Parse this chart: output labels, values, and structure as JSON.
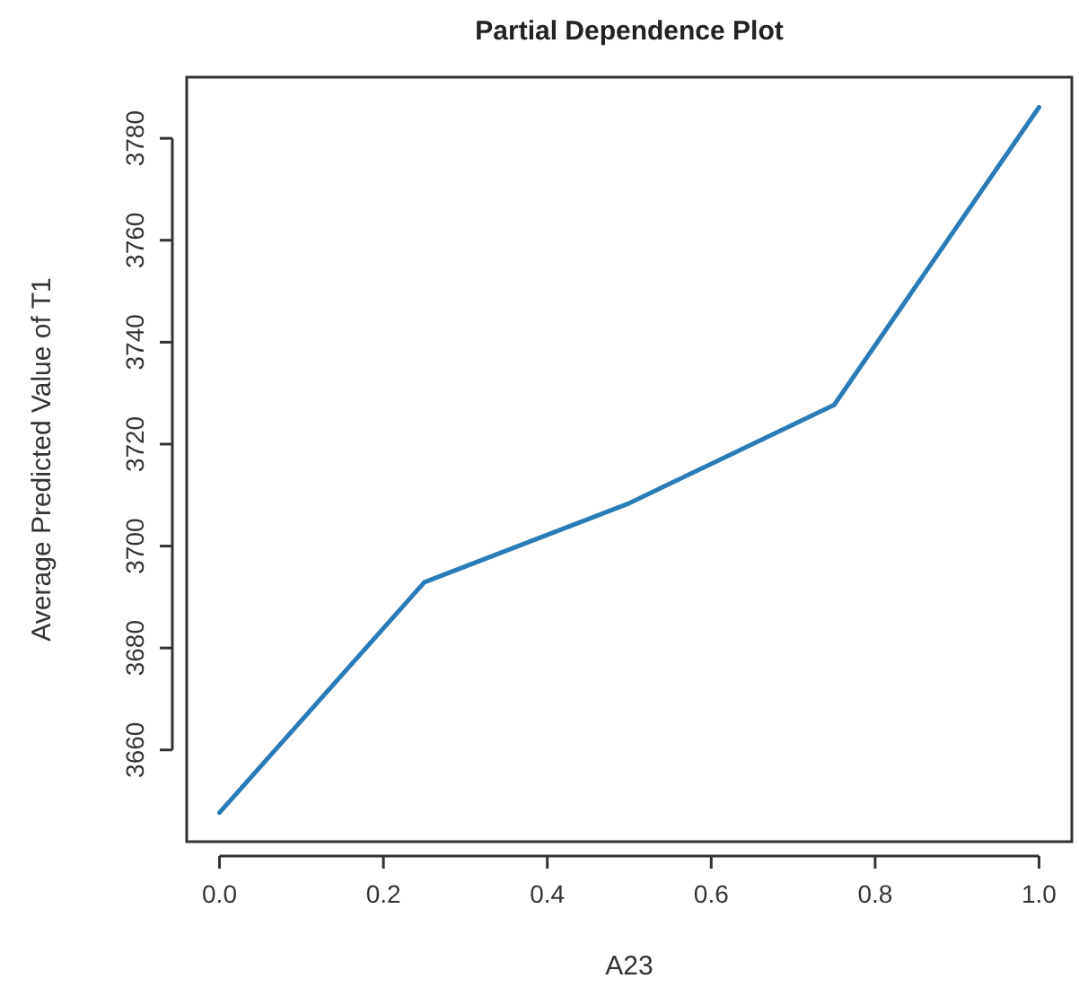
{
  "chart_data": {
    "type": "line",
    "title": "Partial Dependence Plot",
    "xlabel": "A23",
    "ylabel": "Average Predicted Value of T1",
    "x": [
      0,
      0.25,
      0.5,
      0.75,
      1.0
    ],
    "series": [
      {
        "color": "#2b7bb9",
        "values": [
          3647.7,
          3692.9,
          3708.4,
          3727.7,
          3786.1
        ]
      }
    ],
    "xlim": [
      -0.04,
      1.04
    ],
    "xticks": [
      {
        "value": 0,
        "label": "0.0"
      },
      0.2,
      0.4,
      0.6,
      0.8,
      {
        "value": 1,
        "label": "1.0"
      }
    ],
    "ylim": [
      3642,
      3792
    ],
    "yticks": [
      3660,
      3680,
      3700,
      3720,
      3740,
      3760,
      3780
    ],
    "grid": false,
    "marker": "none",
    "line_style": "solid"
  }
}
